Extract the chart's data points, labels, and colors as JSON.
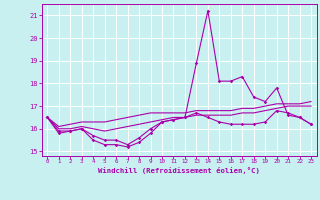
{
  "xlabel": "Windchill (Refroidissement éolien,°C)",
  "background_color": "#c8f0f0",
  "grid_color": "#b0dede",
  "line_color": "#aa00aa",
  "ylim": [
    14.8,
    21.5
  ],
  "xlim": [
    -0.5,
    23.5
  ],
  "yticks": [
    15,
    16,
    17,
    18,
    19,
    20,
    21
  ],
  "xticks": [
    0,
    1,
    2,
    3,
    4,
    5,
    6,
    7,
    8,
    9,
    10,
    11,
    12,
    13,
    14,
    15,
    16,
    17,
    18,
    19,
    20,
    21,
    22,
    23
  ],
  "series1": [
    16.5,
    15.8,
    15.9,
    16.0,
    15.5,
    15.3,
    15.3,
    15.2,
    15.4,
    15.8,
    16.3,
    16.4,
    16.5,
    18.9,
    21.2,
    18.1,
    18.1,
    18.3,
    17.4,
    17.2,
    17.8,
    16.6,
    16.5,
    16.2
  ],
  "series2": [
    16.5,
    15.9,
    15.9,
    16.0,
    15.7,
    15.5,
    15.5,
    15.3,
    15.6,
    16.0,
    16.3,
    16.4,
    16.5,
    16.7,
    16.5,
    16.3,
    16.2,
    16.2,
    16.2,
    16.3,
    16.8,
    16.7,
    16.5,
    16.2
  ],
  "series3": [
    16.5,
    16.0,
    16.0,
    16.1,
    16.0,
    15.9,
    16.0,
    16.1,
    16.2,
    16.3,
    16.4,
    16.5,
    16.5,
    16.6,
    16.6,
    16.6,
    16.6,
    16.7,
    16.7,
    16.8,
    16.9,
    17.0,
    17.0,
    17.0
  ],
  "series4": [
    16.5,
    16.1,
    16.2,
    16.3,
    16.3,
    16.3,
    16.4,
    16.5,
    16.6,
    16.7,
    16.7,
    16.7,
    16.7,
    16.8,
    16.8,
    16.8,
    16.8,
    16.9,
    16.9,
    17.0,
    17.1,
    17.1,
    17.1,
    17.2
  ]
}
